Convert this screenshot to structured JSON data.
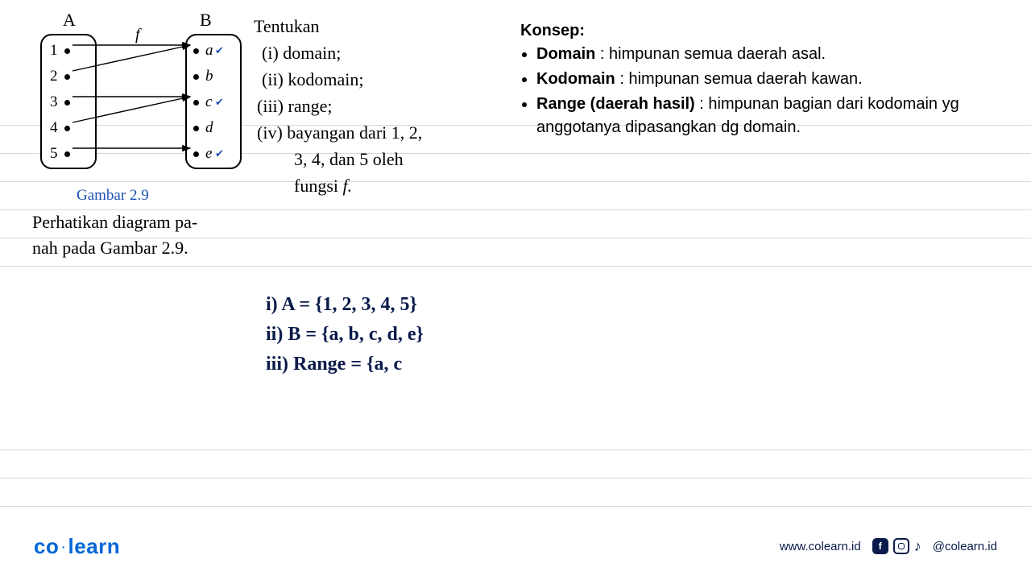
{
  "diagram": {
    "label_a": "A",
    "label_b": "B",
    "f_label": "f",
    "set_a": [
      "1",
      "2",
      "3",
      "4",
      "5"
    ],
    "set_b": [
      "a",
      "b",
      "c",
      "d",
      "e"
    ],
    "checks_b": [
      true,
      false,
      true,
      false,
      true
    ],
    "arrows": [
      {
        "from": 0,
        "to": 0
      },
      {
        "from": 1,
        "to": 0
      },
      {
        "from": 2,
        "to": 2
      },
      {
        "from": 3,
        "to": 2
      },
      {
        "from": 4,
        "to": 4
      }
    ],
    "caption": "Gambar 2.9",
    "colors": {
      "check": "#1a4fb3",
      "caption": "#1a4fb3",
      "line": "#000000"
    }
  },
  "perhatikan": {
    "line1": "Perhatikan diagram pa-",
    "line2": "nah pada Gambar 2.9."
  },
  "tentukan": {
    "title": "Tentukan",
    "items": [
      "(i)  domain;",
      "(ii)  kodomain;",
      "(iii)  range;",
      "(iv)  bayangan dari 1, 2,"
    ],
    "cont1": "3, 4, dan 5 oleh",
    "cont2_prefix": "fungsi ",
    "cont2_f": "f."
  },
  "konsep": {
    "title": "Konsep:",
    "items": [
      {
        "bold": "Domain",
        "rest": " : himpunan semua daerah asal."
      },
      {
        "bold": "Kodomain",
        "rest": " : himpunan semua daerah kawan."
      },
      {
        "bold": "Range (daerah hasil)",
        "rest": " : himpunan bagian dari kodomain yg anggotanya dipasangkan dg domain."
      }
    ]
  },
  "handwriting": {
    "lines": [
      "i) A = {1, 2, 3, 4, 5}",
      "ii) B = {a, b, c, d, e}",
      "iii) Range = {a, c"
    ],
    "color": "#0a1a4a"
  },
  "page_lines": {
    "positions": [
      155,
      190,
      225,
      260,
      295,
      330,
      558,
      593,
      628
    ],
    "color": "#d8d8d8"
  },
  "footer": {
    "logo_part1": "co",
    "logo_part2": "learn",
    "url": "www.colearn.id",
    "handle": "@colearn.id",
    "brand_color": "#0066d6",
    "text_color": "#0a1a4a"
  }
}
